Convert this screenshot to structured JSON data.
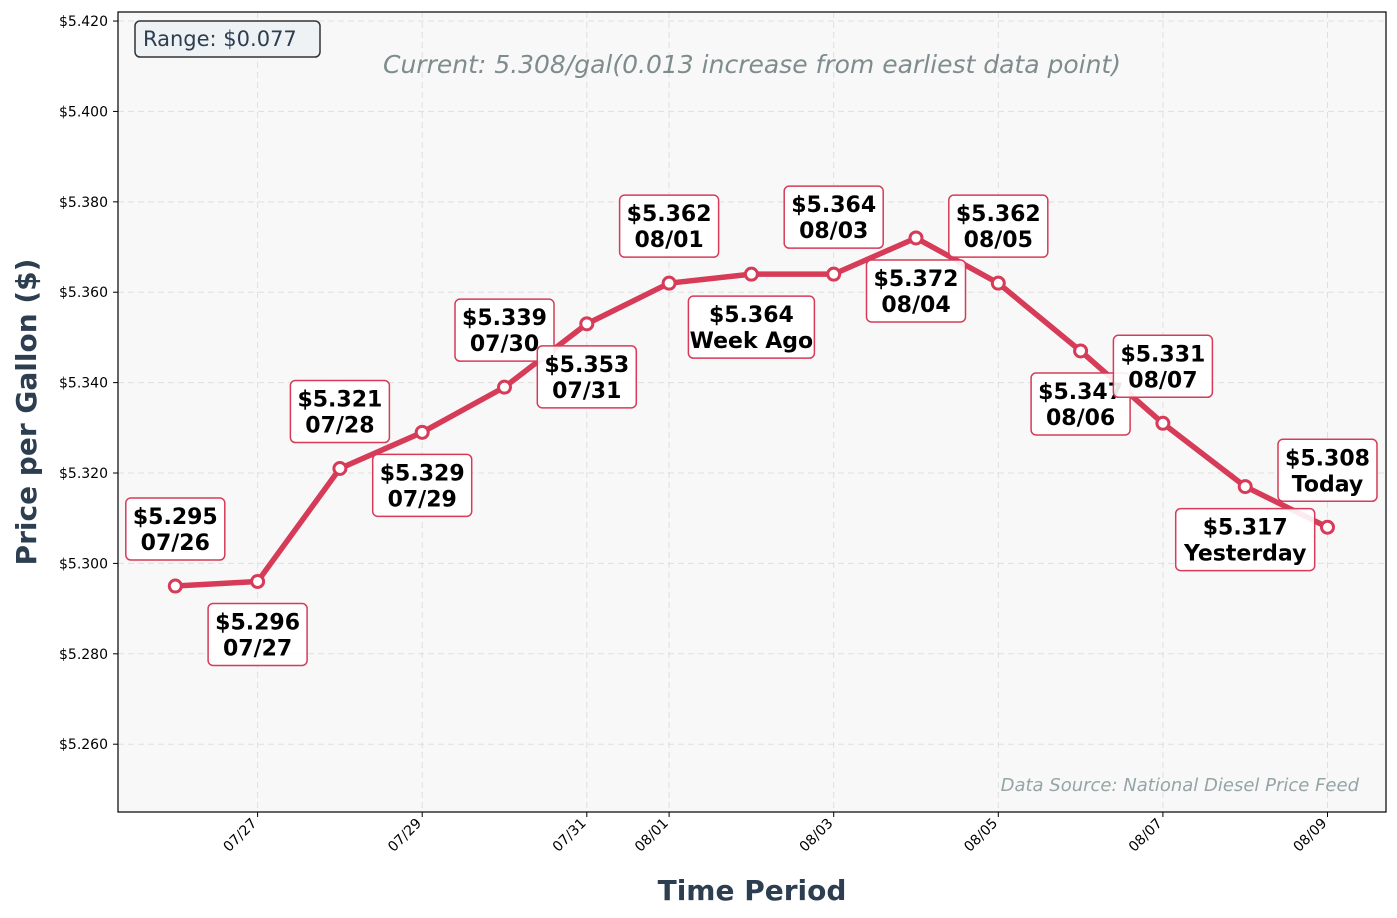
{
  "chart_data": {
    "type": "line",
    "xlabel": "Time Period",
    "ylabel": "Price per Gallon ($)",
    "ylim": [
      5.245,
      5.422
    ],
    "xlim": [
      "07/25",
      "08/09"
    ],
    "grid": true,
    "y_ticks": [
      "$5.260",
      "$5.280",
      "$5.300",
      "$5.320",
      "$5.340",
      "$5.360",
      "$5.380",
      "$5.400",
      "$5.420"
    ],
    "x_ticks": [
      "07/27",
      "07/29",
      "07/31",
      "08/01",
      "08/03",
      "08/05",
      "08/07",
      "08/09"
    ],
    "series": [
      {
        "x": [
          "07/26",
          "07/27",
          "07/28",
          "07/29",
          "07/30",
          "07/31",
          "08/01",
          "08/02",
          "08/03",
          "08/04",
          "08/05",
          "08/06",
          "08/07",
          "08/08",
          "08/09"
        ],
        "values": [
          5.295,
          5.296,
          5.321,
          5.329,
          5.339,
          5.353,
          5.362,
          5.364,
          5.364,
          5.372,
          5.362,
          5.347,
          5.331,
          5.317,
          5.308
        ]
      }
    ],
    "annotations": [
      {
        "price": "$5.295",
        "tag": "07/26",
        "pos": "above"
      },
      {
        "price": "$5.296",
        "tag": "07/27",
        "pos": "below"
      },
      {
        "price": "$5.321",
        "tag": "07/28",
        "pos": "above"
      },
      {
        "price": "$5.329",
        "tag": "07/29",
        "pos": "below"
      },
      {
        "price": "$5.339",
        "tag": "07/30",
        "pos": "above"
      },
      {
        "price": "$5.353",
        "tag": "07/31",
        "pos": "below"
      },
      {
        "price": "$5.362",
        "tag": "08/01",
        "pos": "above"
      },
      {
        "price": "$5.364",
        "tag": "Week Ago",
        "pos": "below"
      },
      {
        "price": "$5.364",
        "tag": "08/03",
        "pos": "above"
      },
      {
        "price": "$5.372",
        "tag": "08/04",
        "pos": "below"
      },
      {
        "price": "$5.362",
        "tag": "08/05",
        "pos": "above"
      },
      {
        "price": "$5.347",
        "tag": "08/06",
        "pos": "below"
      },
      {
        "price": "$5.331",
        "tag": "08/07",
        "pos": "above"
      },
      {
        "price": "$5.317",
        "tag": "Yesterday",
        "pos": "below"
      },
      {
        "price": "$5.308",
        "tag": "Today",
        "pos": "above"
      }
    ],
    "range_text": "Range: $0.077",
    "current_text": "Current: 5.308/gal(0.013 increase from earliest data point)",
    "source_text": "Data Source: National Diesel Price Feed",
    "colors": {
      "line": "#d63b58",
      "plot_bg": "#f8f8f8",
      "axis_title": "#2c3e50",
      "range_box": "#eef2f5"
    }
  }
}
